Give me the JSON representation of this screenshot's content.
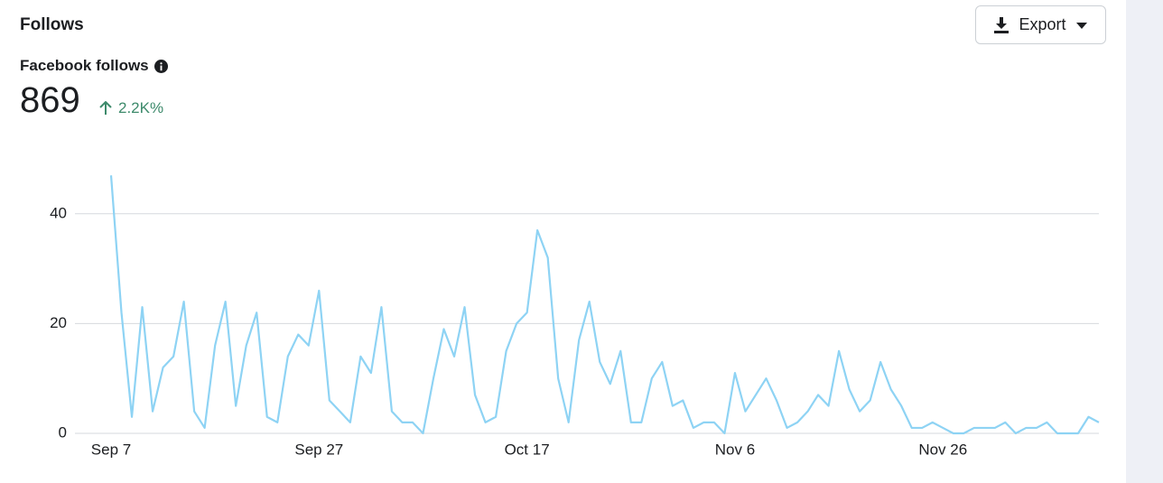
{
  "header": {
    "title": "Follows",
    "button": "Export"
  },
  "metric": {
    "label": "Facebook follows",
    "value": "869",
    "change": "2.2K%"
  },
  "chart_data": {
    "type": "line",
    "categories": [
      "Sep 7",
      null,
      null,
      null,
      null,
      null,
      null,
      null,
      null,
      null,
      null,
      null,
      null,
      null,
      null,
      null,
      null,
      null,
      null,
      null,
      "Sep 27",
      null,
      null,
      null,
      null,
      null,
      null,
      null,
      null,
      null,
      null,
      null,
      null,
      null,
      null,
      null,
      null,
      null,
      null,
      null,
      "Oct 17",
      null,
      null,
      null,
      null,
      null,
      null,
      null,
      null,
      null,
      null,
      null,
      null,
      null,
      null,
      null,
      null,
      null,
      null,
      null,
      "Nov 6",
      null,
      null,
      null,
      null,
      null,
      null,
      null,
      null,
      null,
      null,
      null,
      null,
      null,
      null,
      null,
      null,
      null,
      null,
      null,
      "Nov 26",
      null,
      null,
      null,
      null,
      null,
      null,
      null,
      null,
      null,
      null,
      null,
      null,
      null,
      null,
      null
    ],
    "series": [
      {
        "color": "#8ed3f4",
        "values": [
          47,
          22,
          3,
          23,
          4,
          12,
          14,
          24,
          4,
          1,
          16,
          24,
          5,
          16,
          22,
          3,
          2,
          14,
          18,
          16,
          26,
          6,
          4,
          2,
          14,
          11,
          23,
          4,
          2,
          2,
          0,
          10,
          19,
          14,
          23,
          7,
          2,
          3,
          15,
          20,
          22,
          37,
          32,
          10,
          2,
          17,
          24,
          13,
          9,
          15,
          2,
          2,
          10,
          13,
          5,
          6,
          1,
          2,
          2,
          0,
          11,
          4,
          7,
          10,
          6,
          1,
          2,
          4,
          7,
          5,
          15,
          8,
          4,
          6,
          13,
          8,
          5,
          1,
          1,
          2,
          1,
          0,
          0,
          1,
          1,
          1,
          2,
          0,
          1,
          1,
          2,
          0,
          0,
          0,
          3,
          2
        ]
      }
    ],
    "ylim": [
      0,
      50
    ],
    "yticks": [
      0,
      20,
      40
    ],
    "grid": true
  }
}
